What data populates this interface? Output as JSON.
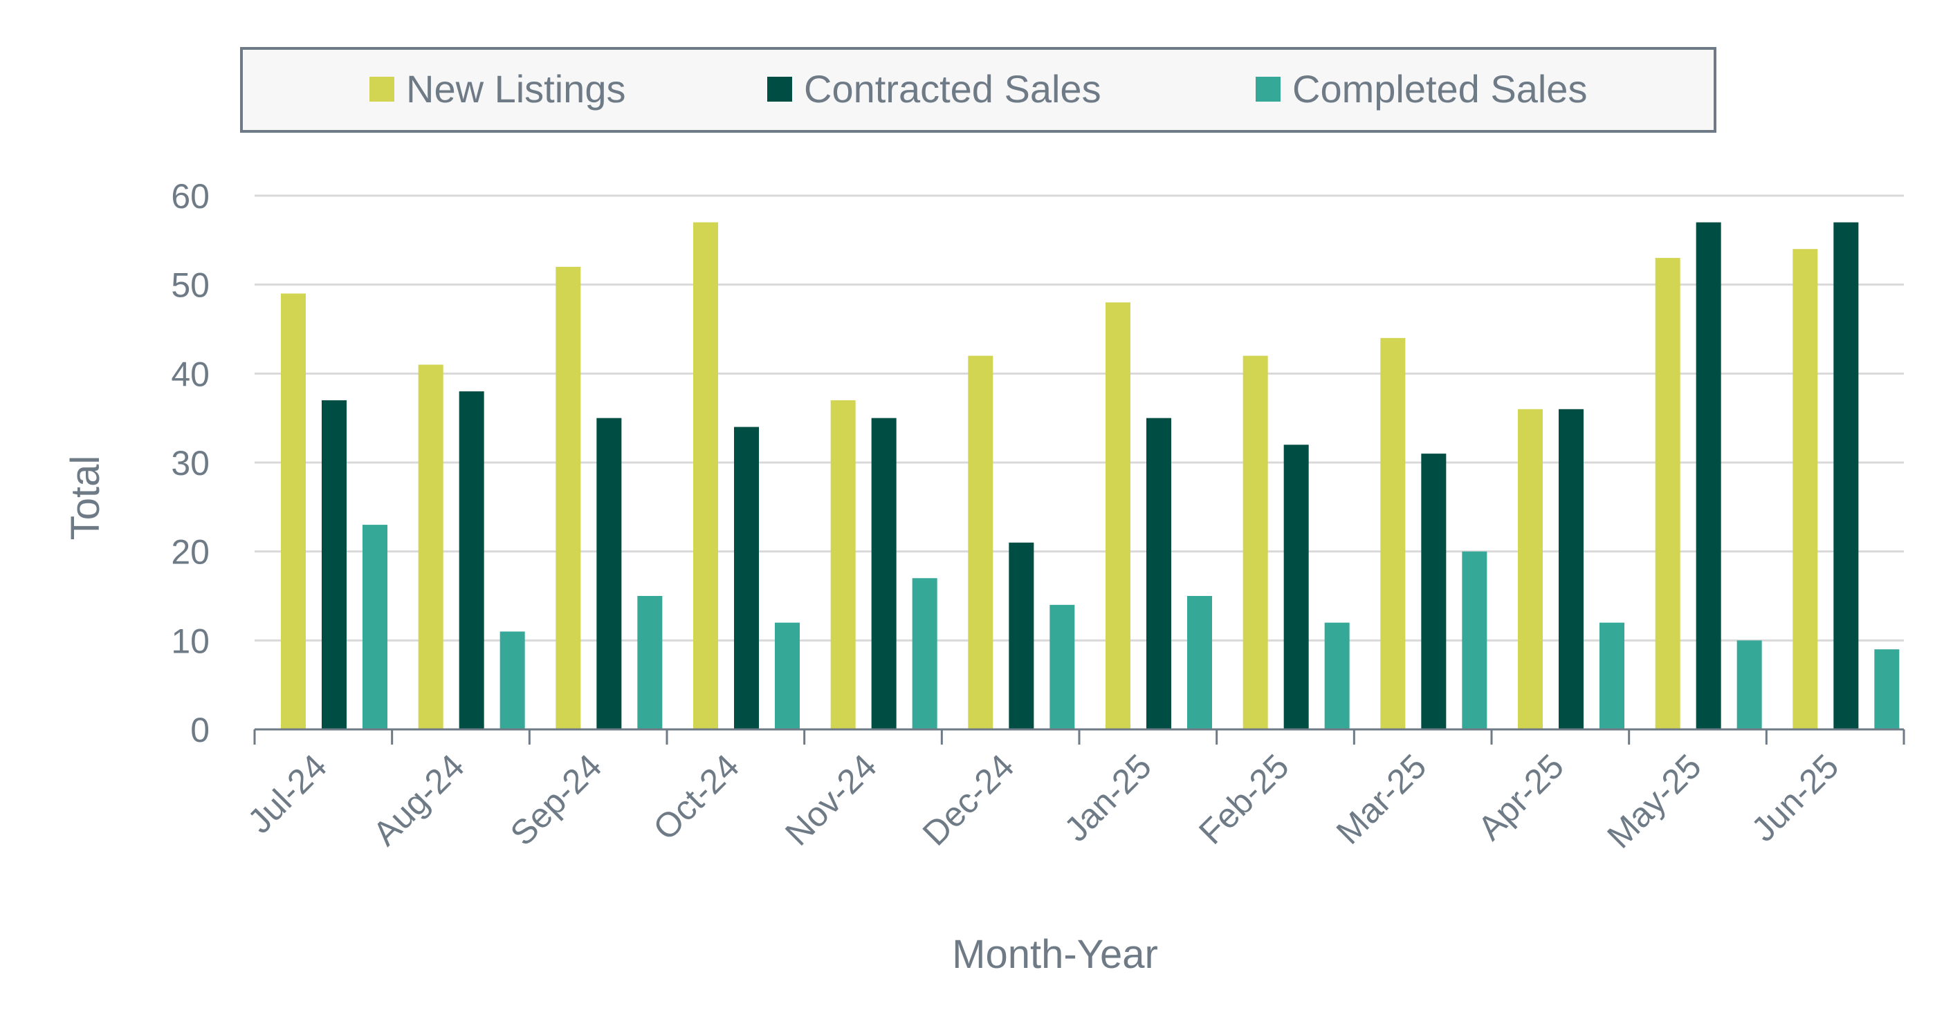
{
  "colors": {
    "text": "#6e7b86",
    "grid": "#d9d9d9",
    "axis": "#6e7b86",
    "legend_border": "#6e7b86",
    "legend_fill": "#f7f7f7"
  },
  "chart_data": {
    "type": "bar",
    "categories": [
      "Jul-24",
      "Aug-24",
      "Sep-24",
      "Oct-24",
      "Nov-24",
      "Dec-24",
      "Jan-25",
      "Feb-25",
      "Mar-25",
      "Apr-25",
      "May-25",
      "Jun-25"
    ],
    "series": [
      {
        "name": "New Listings",
        "color": "#d2d552",
        "values": [
          49,
          41,
          52,
          57,
          37,
          42,
          48,
          42,
          44,
          36,
          53,
          54
        ]
      },
      {
        "name": "Contracted Sales",
        "color": "#004d43",
        "values": [
          37,
          38,
          35,
          34,
          35,
          21,
          35,
          32,
          31,
          36,
          57,
          57
        ]
      },
      {
        "name": "Completed Sales",
        "color": "#35a898",
        "values": [
          23,
          11,
          15,
          12,
          17,
          14,
          15,
          12,
          20,
          12,
          10,
          9
        ]
      }
    ],
    "xlabel": "Month-Year",
    "ylabel": "Total",
    "ylim": [
      0,
      60
    ],
    "yticks": [
      0,
      10,
      20,
      30,
      40,
      50,
      60
    ],
    "grid": true,
    "legend_position": "top"
  }
}
